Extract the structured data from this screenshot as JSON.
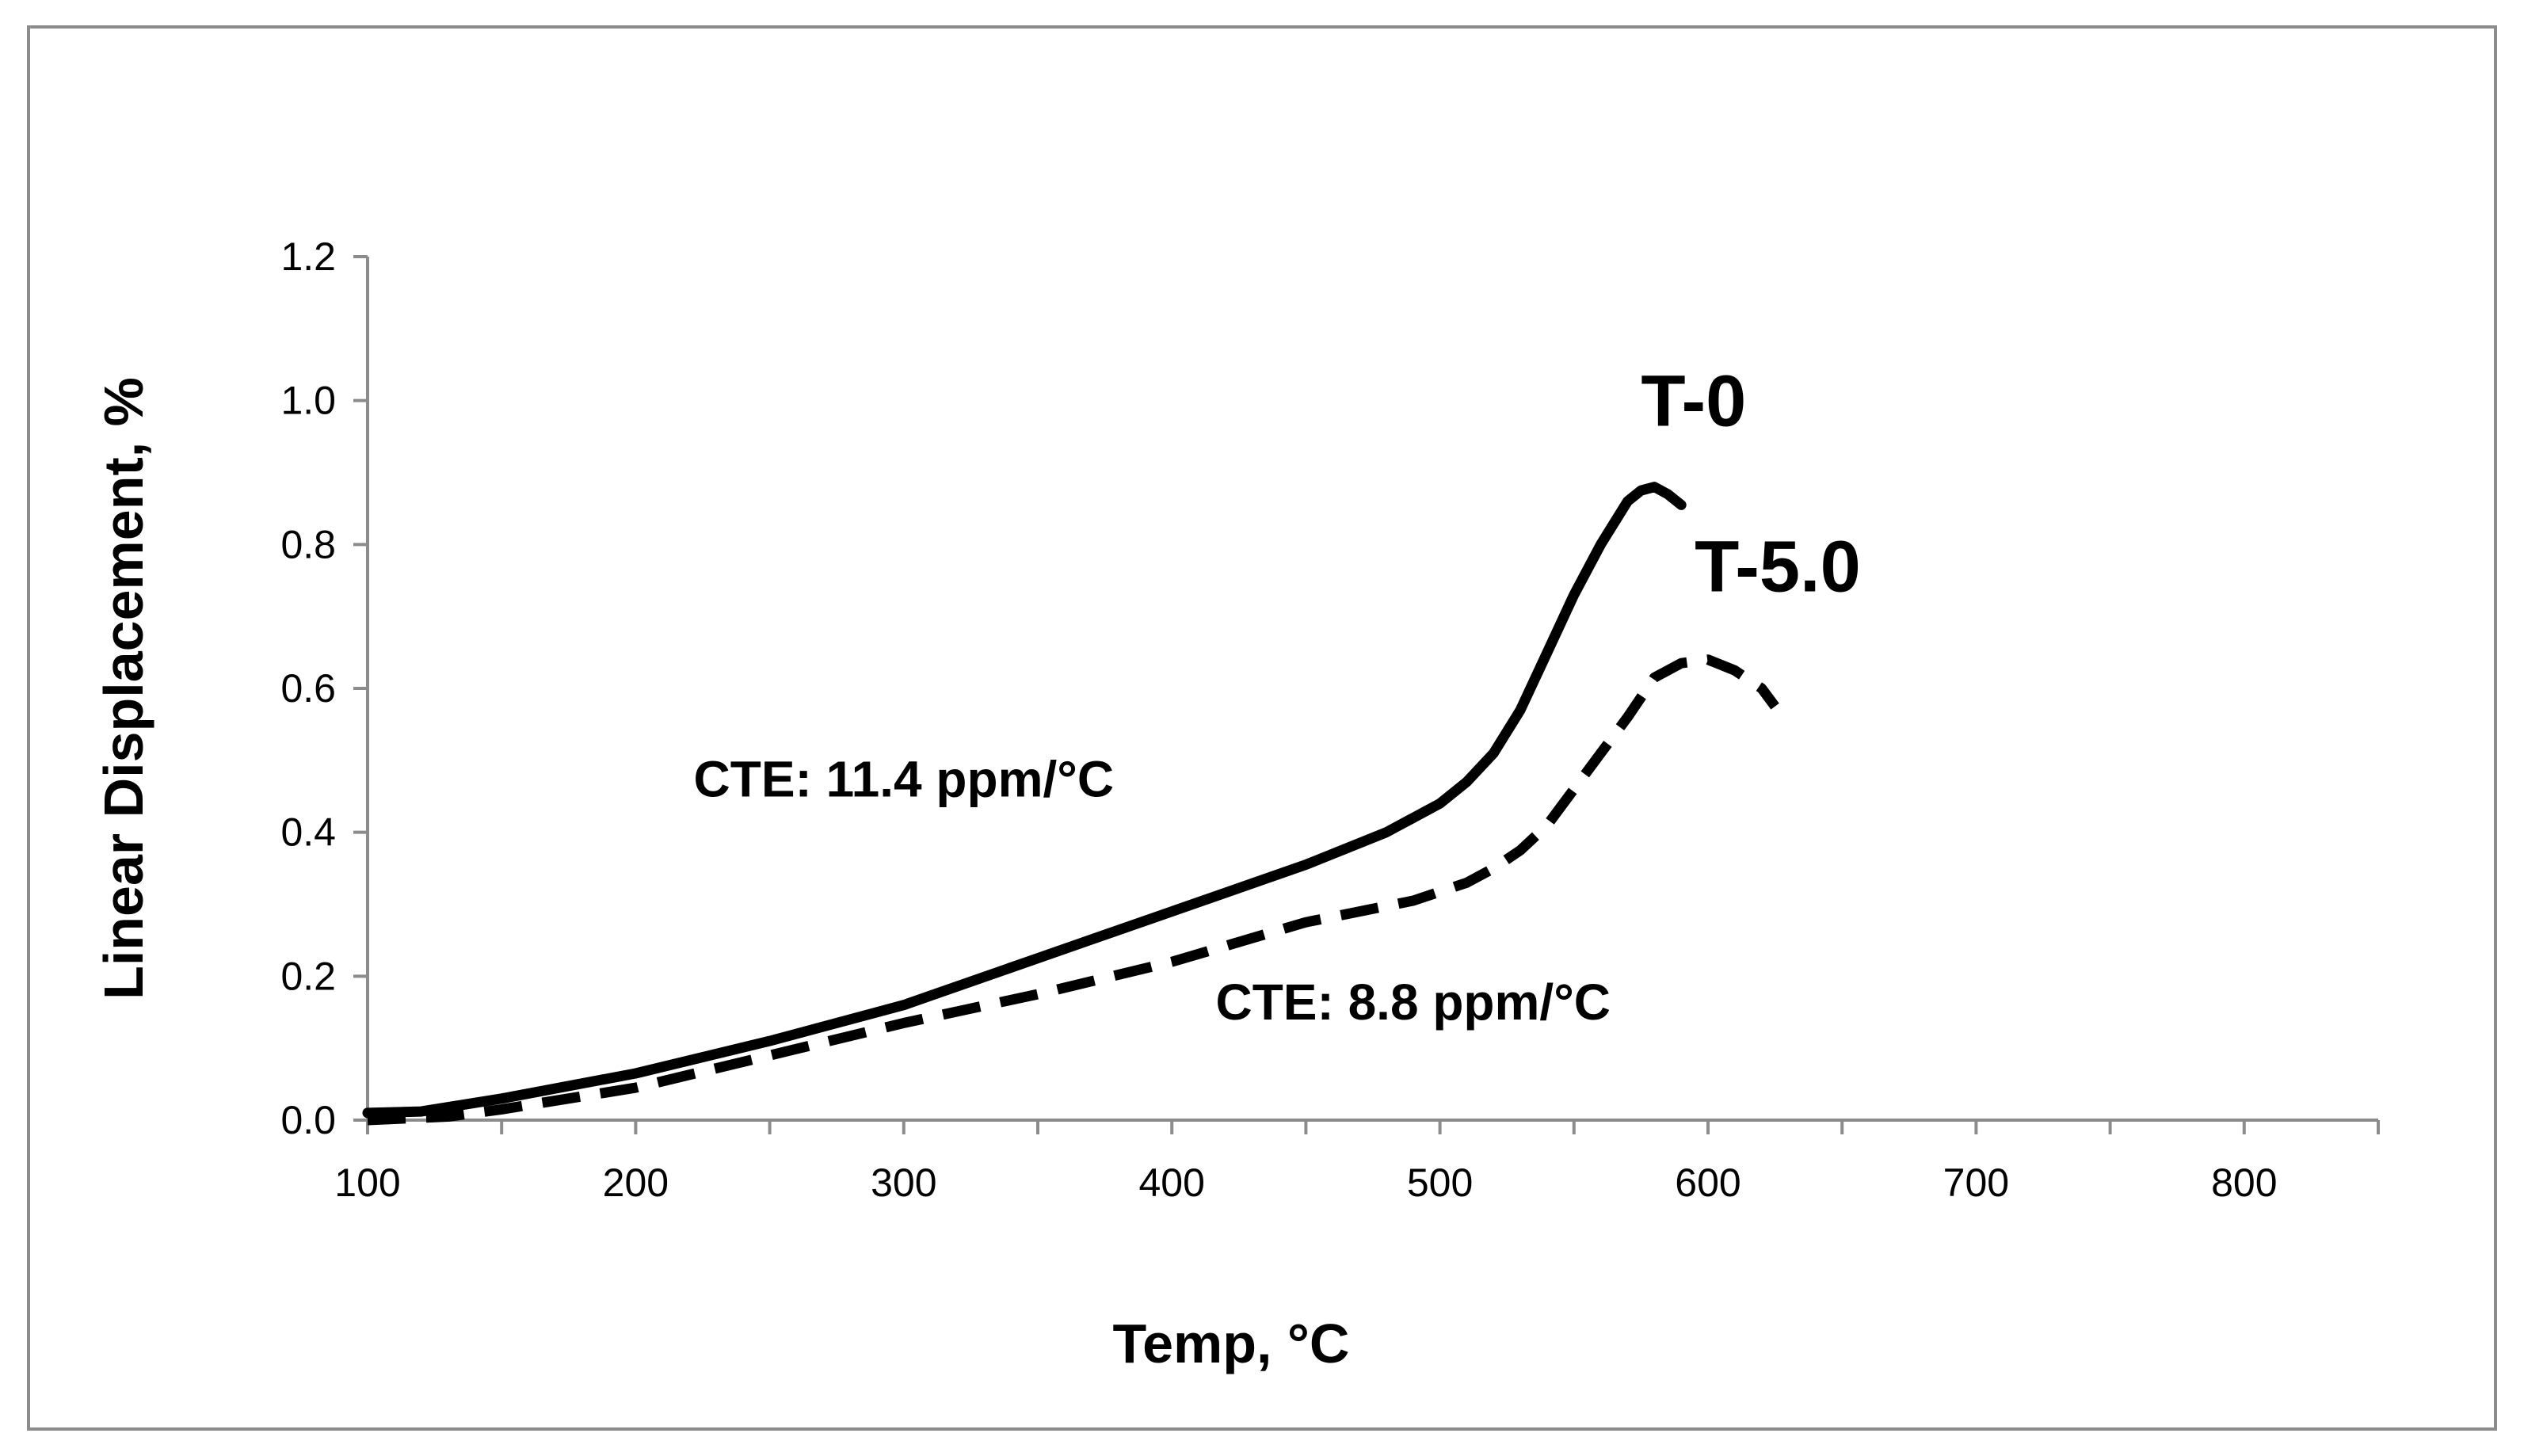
{
  "chart_data": {
    "type": "line",
    "title": "",
    "xlabel": "Temp, °C",
    "ylabel": "Linear Displacement, %",
    "xlim": [
      100,
      850
    ],
    "ylim": [
      0,
      1.2
    ],
    "x_ticks": [
      "100",
      "200",
      "300",
      "400",
      "500",
      "600",
      "700",
      "800"
    ],
    "y_ticks": [
      "0.0",
      "0.2",
      "0.4",
      "0.6",
      "0.8",
      "1.0",
      "1.2"
    ],
    "grid": false,
    "legend": "none",
    "series": [
      {
        "name": "T-0",
        "style": "solid",
        "x": [
          100,
          120,
          150,
          200,
          250,
          300,
          350,
          400,
          450,
          480,
          500,
          510,
          520,
          530,
          540,
          550,
          560,
          570,
          575,
          580,
          585,
          590
        ],
        "y": [
          0.01,
          0.012,
          0.03,
          0.065,
          0.11,
          0.16,
          0.225,
          0.29,
          0.355,
          0.4,
          0.44,
          0.47,
          0.51,
          0.57,
          0.65,
          0.73,
          0.8,
          0.86,
          0.875,
          0.88,
          0.87,
          0.855
        ]
      },
      {
        "name": "T-5.0",
        "style": "dashed",
        "x": [
          100,
          130,
          150,
          200,
          250,
          300,
          350,
          400,
          450,
          490,
          510,
          520,
          530,
          540,
          550,
          560,
          570,
          580,
          590,
          600,
          610,
          620,
          625
        ],
        "y": [
          0.0,
          0.005,
          0.015,
          0.045,
          0.09,
          0.135,
          0.175,
          0.22,
          0.275,
          0.305,
          0.33,
          0.35,
          0.375,
          0.41,
          0.46,
          0.51,
          0.56,
          0.615,
          0.635,
          0.64,
          0.625,
          0.6,
          0.575
        ]
      }
    ],
    "annotations": [
      {
        "text": "CTE: 11.4 ppm/°C",
        "x": 300,
        "y": 0.45
      },
      {
        "text": "CTE: 8.8 ppm/°C",
        "x": 490,
        "y": 0.14
      }
    ],
    "series_labels": [
      {
        "text": "T-0",
        "x": 575,
        "y": 0.965
      },
      {
        "text": "T-5.0",
        "x": 595,
        "y": 0.735
      }
    ]
  }
}
